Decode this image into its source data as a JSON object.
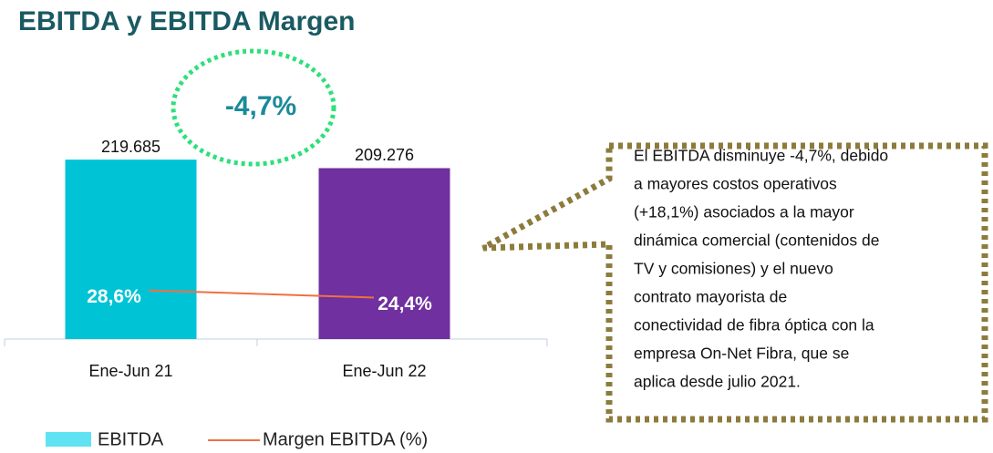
{
  "chart_data": {
    "type": "bar_line",
    "title": "EBITDA y EBITDA Margen",
    "categories": [
      "Ene-Jun 21",
      "Ene-Jun 22"
    ],
    "ylim": [
      0,
      250000
    ],
    "y2lim": [
      0,
      120
    ],
    "series": [
      {
        "name": "EBITDA",
        "color": "#5fe3f2",
        "colors": [
          "#00c3d6",
          "#7030a0"
        ],
        "values": [
          219685,
          209276
        ],
        "value_labels": [
          "219.685",
          "209.276"
        ]
      },
      {
        "name": "Margen EBITDA (%)",
        "color": "#f07040",
        "axis": "y2",
        "values": [
          28.6,
          24.4
        ],
        "value_labels": [
          "28,6%",
          "24,4%"
        ]
      }
    ],
    "annotation": "-4,7%",
    "callout": [
      "El EBITDA disminuye -4,7%, debido",
      "a mayores costos operativos",
      "(+18,1%) asociados a la mayor",
      "dinámica comercial (contenidos de",
      "TV y comisiones) y  el nuevo",
      "contrato mayorista de",
      "conectividad de fibra óptica con la",
      "empresa On-Net Fibra, que se",
      "aplica desde julio 2021."
    ]
  }
}
